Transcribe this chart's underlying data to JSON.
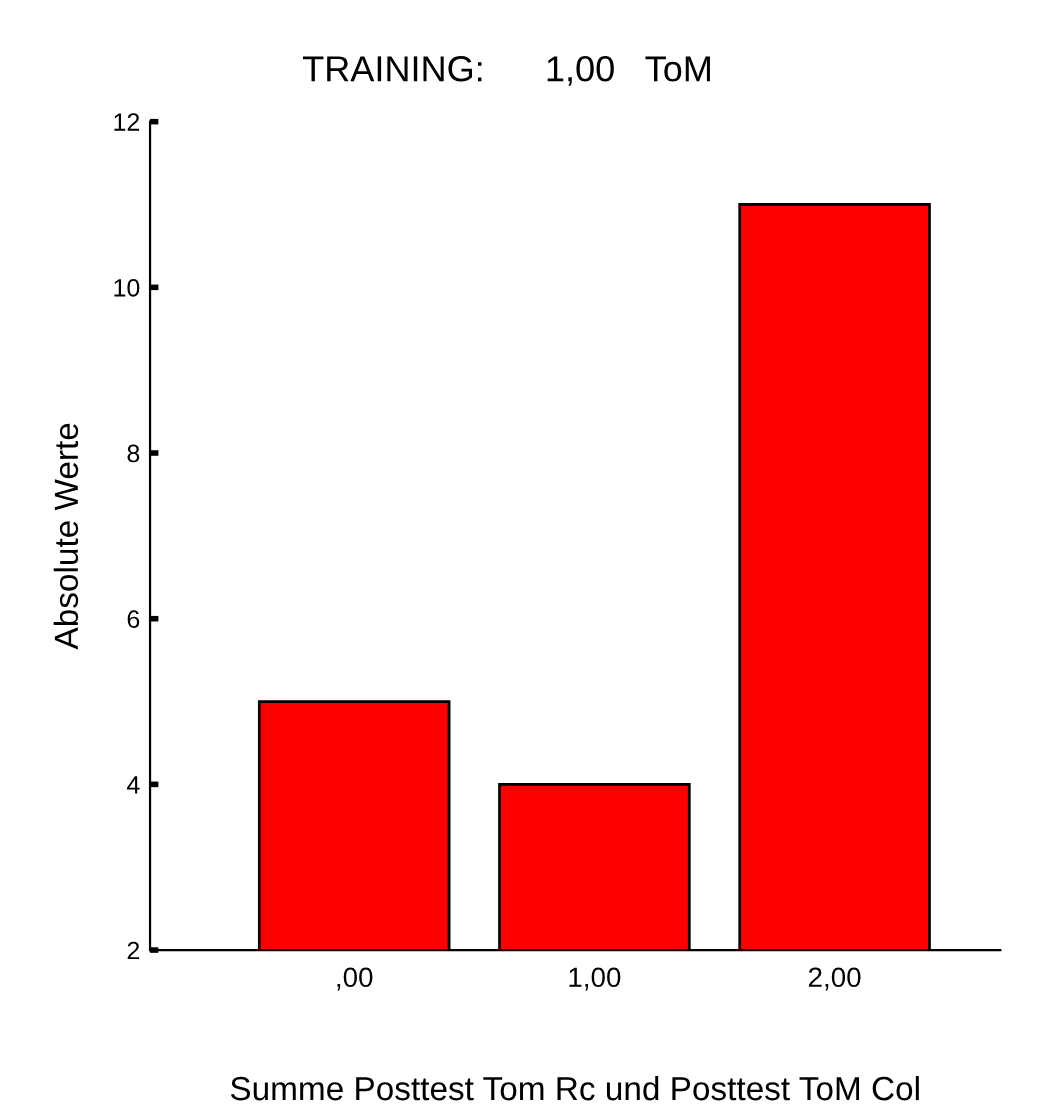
{
  "chart_data": {
    "type": "bar",
    "title": "TRAINING:      1,00   ToM",
    "categories": [
      ",00",
      "1,00",
      "2,00"
    ],
    "values": [
      5,
      4,
      11
    ],
    "color": "#ff0000",
    "ylim": [
      2,
      12
    ],
    "yticks": [
      2,
      4,
      6,
      8,
      10,
      12
    ],
    "xlabel": "Summe Posttest Tom Rc und Posttest ToM Col",
    "ylabel": "Absolute Werte",
    "grid": false
  }
}
